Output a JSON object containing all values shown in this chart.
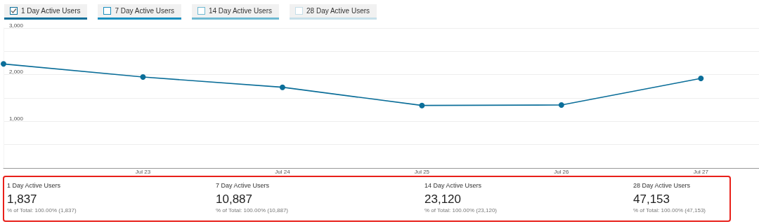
{
  "chart_data": [
    {
      "type": "line",
      "legend": "top left",
      "grid": "y",
      "marker": "circle",
      "tick_labels": "xy",
      "x": [
        "--07-22",
        "--07-23",
        "--07-24",
        "--07-25",
        "--07-26",
        "--07-27"
      ],
      "xlim": [
        "--07-22",
        "--07-27T10:00"
      ],
      "xticks": [
        {
          "value": "--07-23",
          "label": "Jul 23"
        },
        {
          "value": "--07-24",
          "label": "Jul 24"
        },
        {
          "value": "--07-25",
          "label": "Jul 25"
        },
        {
          "value": "--07-26",
          "label": "Jul 26"
        },
        {
          "value": "--07-27",
          "label": "Jul 27"
        }
      ],
      "ylim": [
        0,
        3000
      ],
      "yticks": [
        {
          "value": 0,
          "label": null
        },
        {
          "value": 500,
          "label": null
        },
        {
          "value": 1000,
          "label": "1,000"
        },
        {
          "value": 1500,
          "label": null
        },
        {
          "value": 2000,
          "label": "2,000"
        },
        {
          "value": 2500,
          "label": null
        },
        {
          "value": 3000,
          "label": "3,000"
        }
      ],
      "series": [
        {
          "name": "1 Day Active Users",
          "color": "#0b6e99",
          "values": [
            2230,
            1950,
            1730,
            1340,
            1350,
            1920
          ]
        },
        {
          "name": "7 Day Active Users",
          "color": "#1a8fc0",
          "values": [
            null,
            null,
            null,
            null,
            null,
            null
          ]
        },
        {
          "name": "14 Day Active Users",
          "color": "#6fb9d2",
          "values": [
            null,
            null,
            null,
            null,
            null,
            null
          ]
        },
        {
          "name": "28 Day Active Users",
          "color": "#c6dfe9",
          "values": [
            null,
            null,
            null,
            null,
            null,
            null
          ]
        }
      ]
    },
    {
      "type": "other",
      "color": "#e8201a",
      "categories": [
        "1 Day Active Users",
        "7 Day Active Users",
        "14 Day Active Users",
        "28 Day Active Users"
      ],
      "annotations": [
        "1,837",
        "% of Total: 100.00% (1,837)",
        "10,887",
        "% of Total: 100.00% (10,887)",
        "23,120",
        "% of Total: 100.00% (23,120)",
        "47,153",
        "% of Total: 100.00% (47,153)"
      ]
    }
  ]
}
